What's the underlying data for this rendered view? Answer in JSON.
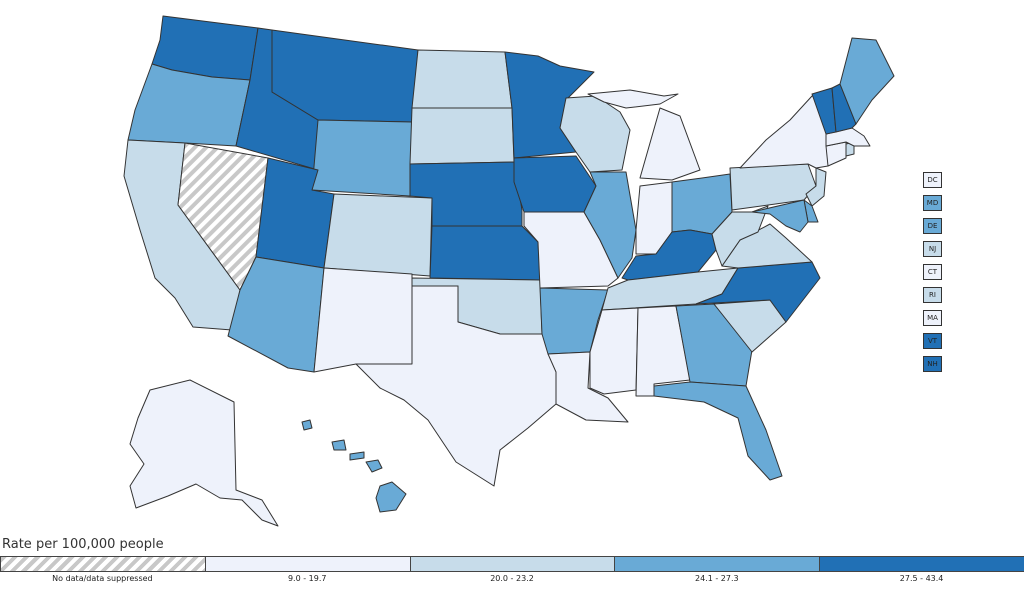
{
  "legend": {
    "title": "Rate per 100,000 people",
    "categories": [
      {
        "label": "No data/data suppressed",
        "color": "hatch"
      },
      {
        "label": "9.0 - 19.7",
        "color": "#eef2fb"
      },
      {
        "label": "20.0 - 23.2",
        "color": "#c7dcea"
      },
      {
        "label": "24.1 - 27.3",
        "color": "#69aad6"
      },
      {
        "label": "27.5 - 43.4",
        "color": "#2170b5"
      }
    ]
  },
  "small_states": [
    {
      "abbr": "DC",
      "category": 1
    },
    {
      "abbr": "MD",
      "category": 3
    },
    {
      "abbr": "DE",
      "category": 3
    },
    {
      "abbr": "NJ",
      "category": 2
    },
    {
      "abbr": "CT",
      "category": 1
    },
    {
      "abbr": "RI",
      "category": 2
    },
    {
      "abbr": "MA",
      "category": 1
    },
    {
      "abbr": "VT",
      "category": 4
    },
    {
      "abbr": "NH",
      "category": 4
    }
  ],
  "state_categories": {
    "WA": 4,
    "OR": 3,
    "CA": 2,
    "NV": 0,
    "ID": 4,
    "MT": 4,
    "WY": 3,
    "UT": 4,
    "AZ": 3,
    "CO": 2,
    "NM": 1,
    "ND": 2,
    "SD": 2,
    "NE": 4,
    "KS": 4,
    "OK": 2,
    "TX": 1,
    "MN": 4,
    "IA": 4,
    "MO": 1,
    "AR": 3,
    "LA": 1,
    "WI": 2,
    "IL": 3,
    "MI": 1,
    "IN": 1,
    "OH": 3,
    "KY": 4,
    "TN": 2,
    "MS": 1,
    "AL": 1,
    "GA": 3,
    "FL": 3,
    "SC": 2,
    "NC": 4,
    "VA": 2,
    "WV": 2,
    "PA": 2,
    "NY": 1,
    "NJ": 2,
    "DE": 3,
    "MD": 3,
    "CT": 1,
    "RI": 2,
    "MA": 1,
    "VT": 4,
    "NH": 4,
    "ME": 3,
    "AK": 1,
    "HI": 3
  }
}
